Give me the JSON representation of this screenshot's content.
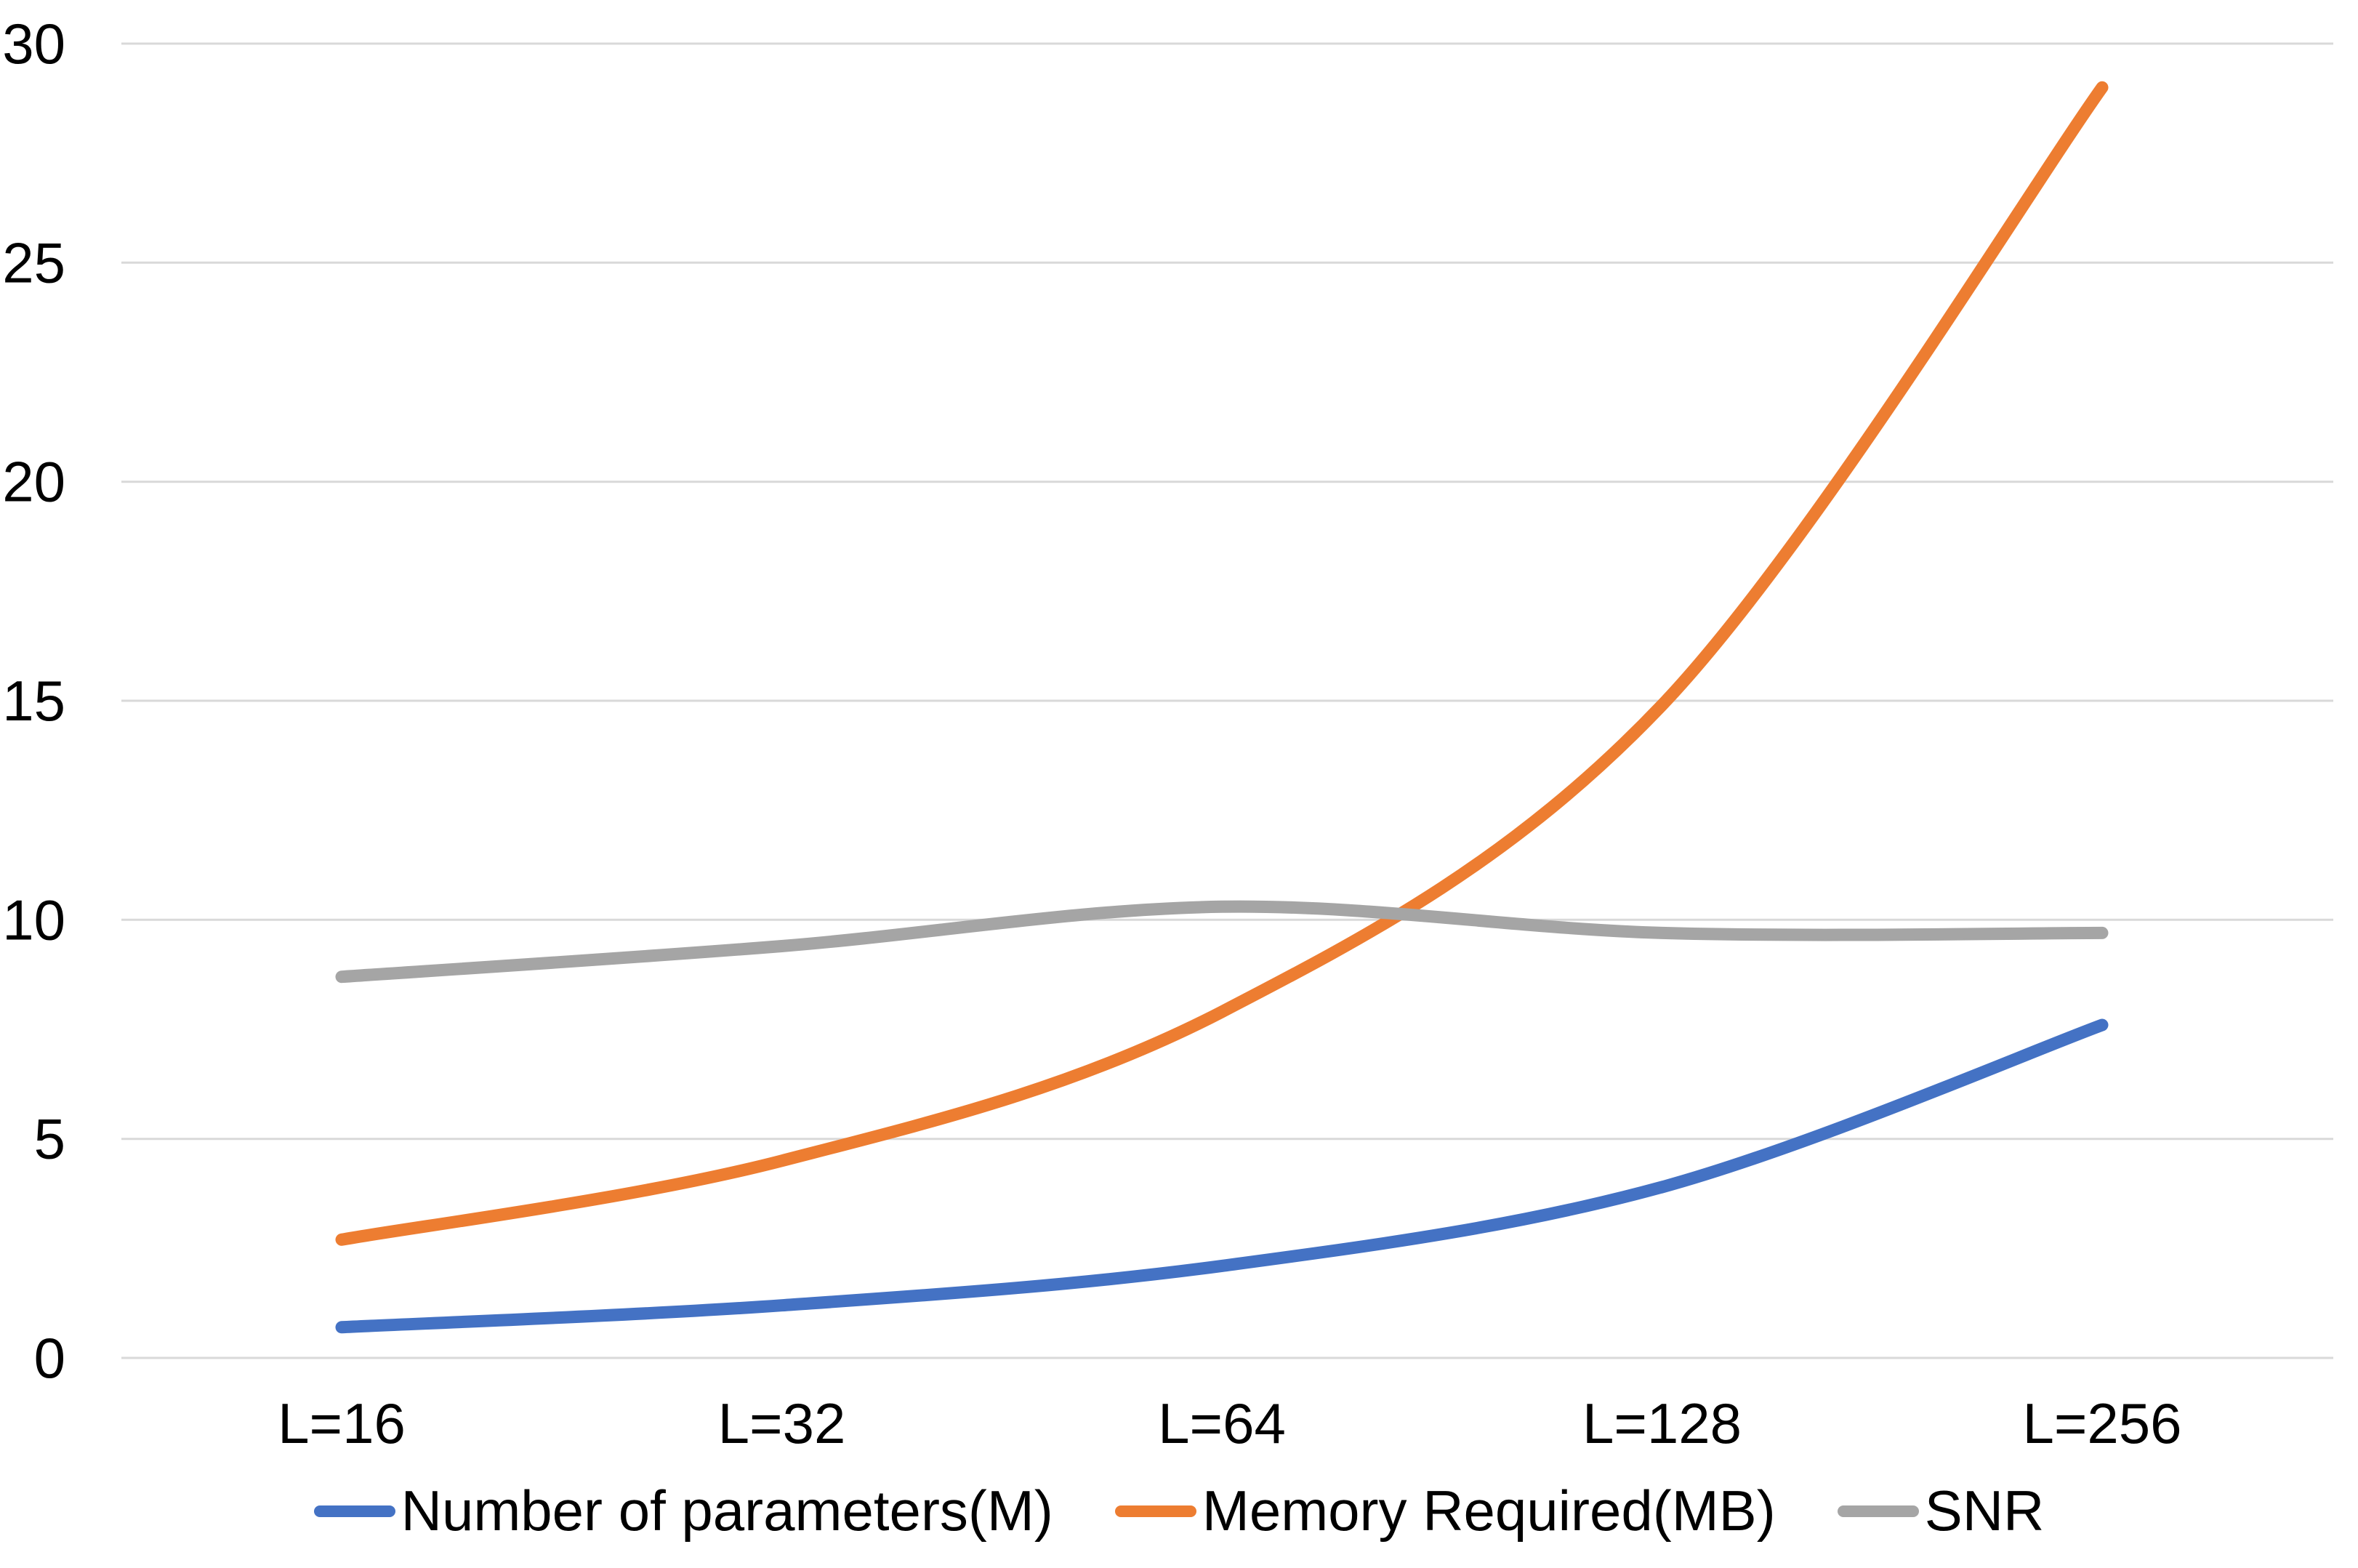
{
  "chart_data": {
    "type": "line",
    "line_style": "smooth",
    "title": "",
    "xlabel": "",
    "ylabel": "",
    "categories": [
      "L=16",
      "L=32",
      "L=64",
      "L=128",
      "L=256"
    ],
    "series": [
      {
        "name": "Number of parameters(M)",
        "color": "#4472C4",
        "values": [
          0.7,
          1.2,
          2.1,
          3.9,
          7.6
        ]
      },
      {
        "name": "Memory Required(MB)",
        "color": "#ED7D31",
        "values": [
          2.7,
          4.5,
          7.9,
          14.9,
          29.0
        ]
      },
      {
        "name": "SNR",
        "color": "#A5A5A5",
        "values": [
          8.7,
          9.4,
          10.3,
          9.7,
          9.7
        ]
      }
    ],
    "ylim": [
      0,
      30
    ],
    "yticks": [
      0,
      5,
      10,
      15,
      20,
      25,
      30
    ],
    "grid": "horizontal",
    "gridline_color": "#D9D9D9",
    "background_color": "#FFFFFF",
    "text_color": "#000000",
    "legend_position": "bottom"
  }
}
